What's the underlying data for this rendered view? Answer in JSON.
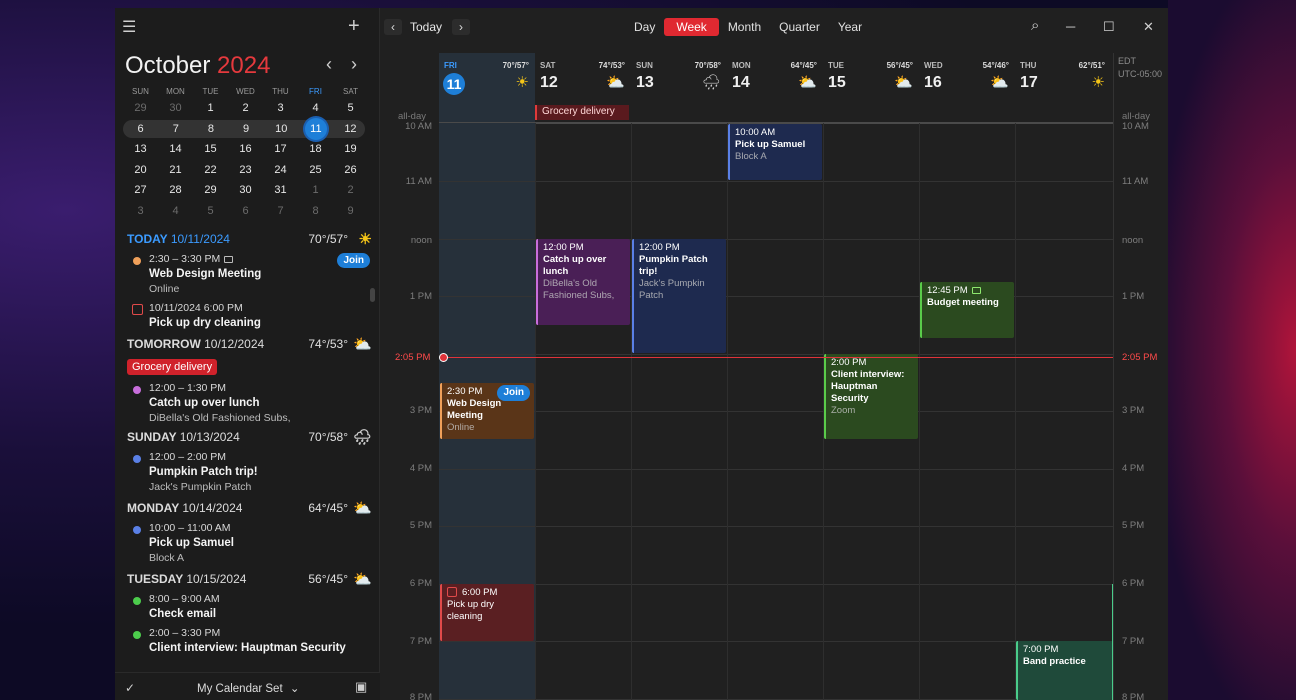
{
  "window": {
    "minimize": "─",
    "maximize": "☐",
    "close": "✕",
    "search": "⌕"
  },
  "sidebar": {
    "menu_icon": "☰",
    "add_icon": "+",
    "month": "October",
    "year": "2024",
    "prev": "‹",
    "next": "›",
    "weekdays": [
      "SUN",
      "MON",
      "TUE",
      "WED",
      "THU",
      "FRI",
      "SAT"
    ],
    "weeks": [
      [
        "29",
        "30",
        "1",
        "2",
        "3",
        "4",
        "5"
      ],
      [
        "6",
        "7",
        "8",
        "9",
        "10",
        "11",
        "12"
      ],
      [
        "13",
        "14",
        "15",
        "16",
        "17",
        "18",
        "19"
      ],
      [
        "20",
        "21",
        "22",
        "23",
        "24",
        "25",
        "26"
      ],
      [
        "27",
        "28",
        "29",
        "30",
        "31",
        "1",
        "2"
      ],
      [
        "3",
        "4",
        "5",
        "6",
        "7",
        "8",
        "9"
      ]
    ],
    "agenda": {
      "today": {
        "label": "TODAY",
        "date": "10/11/2024",
        "temp": "70°/57°",
        "wx": "☀"
      },
      "today_events": [
        {
          "time": "2:30 – 3:30 PM",
          "name": "Web Design Meeting",
          "sub": "Online",
          "join": "Join",
          "color": "#f0a05a"
        },
        {
          "time": "10/11/2024 6:00 PM",
          "name": "Pick up dry cleaning"
        }
      ],
      "tomorrow": {
        "label": "TOMORROW",
        "date": "10/12/2024",
        "temp": "74°/53°",
        "wx": "⛅",
        "allday": "Grocery delivery"
      },
      "tomorrow_events": [
        {
          "time": "12:00 – 1:30 PM",
          "name": "Catch up over lunch",
          "sub": "DiBella's Old Fashioned Subs,",
          "color": "#c86edc"
        }
      ],
      "sunday": {
        "label": "SUNDAY",
        "date": "10/13/2024",
        "temp": "70°/58°",
        "wx": "🌧"
      },
      "sunday_events": [
        {
          "time": "12:00 – 2:00 PM",
          "name": "Pumpkin Patch trip!",
          "sub": "Jack's Pumpkin Patch",
          "color": "#5a80e6"
        }
      ],
      "monday": {
        "label": "MONDAY",
        "date": "10/14/2024",
        "temp": "64°/45°",
        "wx": "⛅"
      },
      "monday_events": [
        {
          "time": "10:00 – 11:00 AM",
          "name": "Pick up Samuel",
          "sub": "Block A",
          "color": "#5a80e6"
        }
      ],
      "tuesday": {
        "label": "TUESDAY",
        "date": "10/15/2024",
        "temp": "56°/45°",
        "wx": "⛅"
      },
      "tuesday_events": [
        {
          "time": "8:00 – 9:00 AM",
          "name": "Check email",
          "color": "#4ccc4c"
        },
        {
          "time": "2:00 – 3:30 PM",
          "name": "Client interview: Hauptman Security",
          "color": "#4ccc4c"
        }
      ]
    },
    "footer": {
      "check": "✓",
      "calendar_set": "My Calendar Set",
      "chevron": "⌄",
      "panel_icon": "▣"
    }
  },
  "toolbar": {
    "prev": "‹",
    "next": "›",
    "today": "Today",
    "views": [
      "Day",
      "Week",
      "Month",
      "Quarter",
      "Year"
    ],
    "active_view": "Week"
  },
  "week": {
    "days": [
      {
        "dn": "FRI",
        "dd": "11",
        "temp": "70°/57°",
        "wx": "☀"
      },
      {
        "dn": "SAT",
        "dd": "12",
        "temp": "74°/53°",
        "wx": "⛅"
      },
      {
        "dn": "SUN",
        "dd": "13",
        "temp": "70°/58°",
        "wx": "🌧"
      },
      {
        "dn": "MON",
        "dd": "14",
        "temp": "64°/45°",
        "wx": "⛅"
      },
      {
        "dn": "TUE",
        "dd": "15",
        "temp": "56°/45°",
        "wx": "⛅"
      },
      {
        "dn": "WED",
        "dd": "16",
        "temp": "54°/46°",
        "wx": "⛅"
      },
      {
        "dn": "THU",
        "dd": "17",
        "temp": "62°/51°",
        "wx": "☀"
      }
    ],
    "tz1": "EDT",
    "tz2": "UTC-05:00",
    "allday_label": "all-day",
    "allday_event": "Grocery delivery",
    "hours": [
      "10 AM",
      "11 AM",
      "noon",
      "1 PM",
      "2 PM",
      "3 PM",
      "4 PM",
      "5 PM",
      "6 PM",
      "7 PM",
      "8 PM"
    ],
    "now_label": "2:05 PM",
    "events": {
      "samuel": {
        "time": "10:00 AM",
        "name": "Pick up Samuel",
        "sub": "Block A"
      },
      "lunch": {
        "time": "12:00 PM",
        "name": "Catch up over lunch",
        "sub": "DiBella's Old Fashioned Subs,"
      },
      "pumpkin": {
        "time": "12:00 PM",
        "name": "Pumpkin Patch trip!",
        "sub": "Jack's Pumpkin Patch"
      },
      "budget": {
        "time": "12:45 PM",
        "name": "Budget meeting"
      },
      "client": {
        "time": "2:00 PM",
        "name": "Client interview: Hauptman Security",
        "sub": "Zoom"
      },
      "webdesign": {
        "time": "2:30 PM",
        "name": "Web Design Meeting",
        "sub": "Online",
        "join": "Join"
      },
      "cleaning": {
        "time": "6:00 PM",
        "name": "Pick up dry cleaning"
      },
      "band": {
        "time": "7:00 PM",
        "name": "Band practice"
      }
    }
  }
}
